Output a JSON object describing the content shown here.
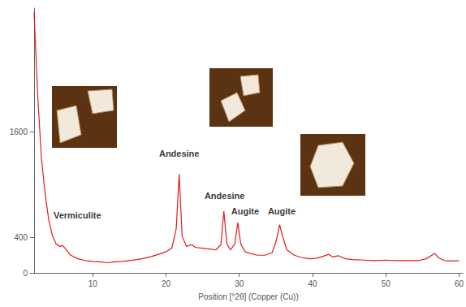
{
  "chart_data": {
    "type": "line",
    "x_label": "Position [°2θ] (Copper (Cu))",
    "color": "#e3191c",
    "grid": false,
    "xlim": [
      2,
      60.5
    ],
    "xticks": [
      10,
      20,
      30,
      40,
      50,
      60
    ],
    "ylim": [
      0,
      3000
    ],
    "yticks": [
      0,
      400,
      1600
    ],
    "x": [
      2,
      2.5,
      3,
      3.5,
      4,
      4.5,
      5,
      5.5,
      5.9,
      6.3,
      7,
      8,
      9,
      10,
      11,
      12,
      13,
      14,
      15,
      16,
      17,
      18,
      19,
      20,
      20.8,
      21.4,
      21.8,
      22.2,
      22.8,
      23.5,
      24,
      25,
      26,
      26.8,
      27.5,
      27.9,
      28.3,
      28.8,
      29.4,
      29.8,
      30.2,
      30.8,
      31.5,
      32.5,
      33.5,
      34.5,
      35.1,
      35.5,
      35.9,
      36.5,
      37.5,
      38.5,
      39.5,
      40.5,
      41.5,
      42.2,
      42.8,
      43.5,
      44.5,
      45.5,
      47,
      48.5,
      50,
      51.5,
      53,
      54.5,
      55.5,
      56.3,
      56.7,
      57.2,
      58,
      59,
      60
    ],
    "values": [
      2950,
      2000,
      1300,
      900,
      600,
      420,
      330,
      300,
      310,
      270,
      200,
      160,
      140,
      130,
      125,
      115,
      125,
      130,
      140,
      150,
      165,
      185,
      210,
      240,
      280,
      500,
      1120,
      420,
      300,
      320,
      290,
      280,
      270,
      260,
      320,
      700,
      330,
      260,
      330,
      570,
      330,
      240,
      220,
      200,
      200,
      230,
      380,
      545,
      420,
      260,
      200,
      175,
      160,
      165,
      190,
      210,
      180,
      195,
      160,
      150,
      145,
      140,
      145,
      140,
      140,
      140,
      160,
      200,
      220,
      170,
      140,
      135,
      140
    ],
    "annotations": [
      {
        "text": "Vermiculite",
        "x": 7.9,
        "y": 650
      },
      {
        "text": "Andesine",
        "x": 21.8,
        "y": 1350
      },
      {
        "text": "Andesine",
        "x": 28,
        "y": 870
      },
      {
        "text": "Augite",
        "x": 30.8,
        "y": 700
      },
      {
        "text": "Augite",
        "x": 35.8,
        "y": 700
      }
    ]
  }
}
